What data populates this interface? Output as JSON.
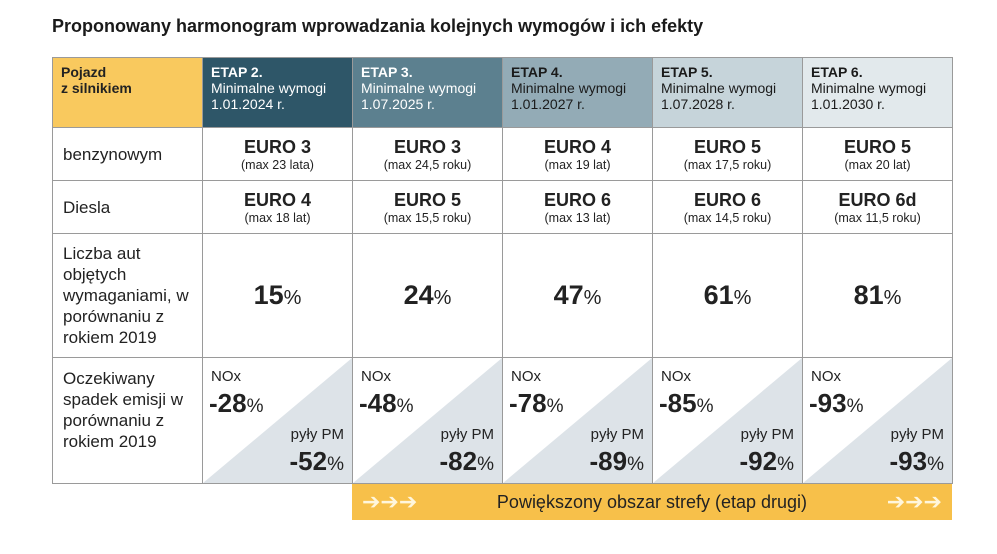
{
  "title": "Proponowany harmonogram wprowadzania kolejnych wymogów i ich efekty",
  "header": {
    "vehicle": [
      "Pojazd",
      "z silnikiem"
    ],
    "stages": [
      {
        "name": "ETAP 2.",
        "sub": "Minimalne wymogi",
        "date": "1.01.2024 r.",
        "color": "#2e5668",
        "text": "#ffffff"
      },
      {
        "name": "ETAP 3.",
        "sub": "Minimalne wymogi",
        "date": "1.07.2025 r.",
        "color": "#5c808f",
        "text": "#ffffff"
      },
      {
        "name": "ETAP 4.",
        "sub": "Minimalne wymogi",
        "date": "1.01.2027 r.",
        "color": "#93abb6",
        "text": "#1a1a1a"
      },
      {
        "name": "ETAP 5.",
        "sub": "Minimalne wymogi",
        "date": "1.07.2028 r.",
        "color": "#c6d4da",
        "text": "#1a1a1a"
      },
      {
        "name": "ETAP 6.",
        "sub": "Minimalne wymogi",
        "date": "1.01.2030 r.",
        "color": "#e2e9ec",
        "text": "#1a1a1a"
      }
    ],
    "vehicle_color": "#f9c95e"
  },
  "rows": {
    "petrol": {
      "label": "benzynowym",
      "cells": [
        {
          "e": "EURO 3",
          "m": "(max 23 lata)"
        },
        {
          "e": "EURO 3",
          "m": "(max 24,5 roku)"
        },
        {
          "e": "EURO 4",
          "m": "(max 19 lat)"
        },
        {
          "e": "EURO 5",
          "m": "(max 17,5 roku)"
        },
        {
          "e": "EURO 5",
          "m": "(max 20 lat)"
        }
      ]
    },
    "diesel": {
      "label": "Diesla",
      "cells": [
        {
          "e": "EURO 4",
          "m": "(max 18 lat)"
        },
        {
          "e": "EURO 5",
          "m": "(max 15,5 roku)"
        },
        {
          "e": "EURO 6",
          "m": "(max 13 lat)"
        },
        {
          "e": "EURO 6",
          "m": "(max 14,5 roku)"
        },
        {
          "e": "EURO 6d",
          "m": "(max 11,5 roku)"
        }
      ]
    },
    "cars": {
      "label": "Liczba aut objętych wymaganiami, w porównaniu z rokiem 2019",
      "values": [
        "15",
        "24",
        "47",
        "61",
        "81"
      ],
      "unit": "%"
    },
    "emissions": {
      "label": "Oczekiwany spadek emisji w porównaniu z rokiem 2019",
      "nox_label": "NOx",
      "pm_label": "pyły PM",
      "unit": "%",
      "nox": [
        "-28",
        "-48",
        "-78",
        "-85",
        "-93"
      ],
      "pm": [
        "-52",
        "-82",
        "-89",
        "-92",
        "-93"
      ]
    }
  },
  "banner": {
    "text": "Powiększony obszar strefy (etap drugi)"
  }
}
